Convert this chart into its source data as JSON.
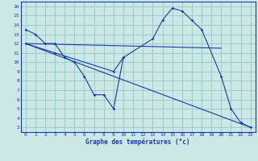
{
  "bg_color": "#cce8e6",
  "grid_color": "#99ccc8",
  "line_color": "#1a3aaa",
  "xlabel": "Graphe des températures (°c)",
  "xlim": [
    -0.5,
    23.5
  ],
  "ylim": [
    2.5,
    16.5
  ],
  "xticks": [
    0,
    1,
    2,
    3,
    4,
    5,
    6,
    7,
    8,
    9,
    10,
    11,
    12,
    13,
    14,
    15,
    16,
    17,
    18,
    19,
    20,
    21,
    22,
    23
  ],
  "yticks": [
    3,
    4,
    5,
    6,
    7,
    8,
    9,
    10,
    11,
    12,
    13,
    14,
    15,
    16
  ],
  "series": [
    {
      "x": [
        0,
        1,
        2,
        3,
        4,
        5,
        6,
        7,
        8,
        9,
        10
      ],
      "y": [
        13.5,
        13.0,
        12.0,
        12.0,
        10.5,
        10.0,
        8.5,
        6.5,
        6.5,
        5.0,
        10.5
      ],
      "has_marker": true
    },
    {
      "x": [
        0,
        20
      ],
      "y": [
        12.0,
        11.5
      ],
      "has_marker": false
    },
    {
      "x": [
        0,
        3,
        9,
        10,
        13,
        14,
        15,
        16,
        17,
        18,
        20,
        21,
        22,
        23
      ],
      "y": [
        12.0,
        11.0,
        9.0,
        10.5,
        12.5,
        14.5,
        15.8,
        15.5,
        14.5,
        13.5,
        8.5,
        5.0,
        3.5,
        3.0
      ],
      "has_marker": true
    },
    {
      "x": [
        0,
        23
      ],
      "y": [
        12.0,
        3.0
      ],
      "has_marker": false
    }
  ]
}
